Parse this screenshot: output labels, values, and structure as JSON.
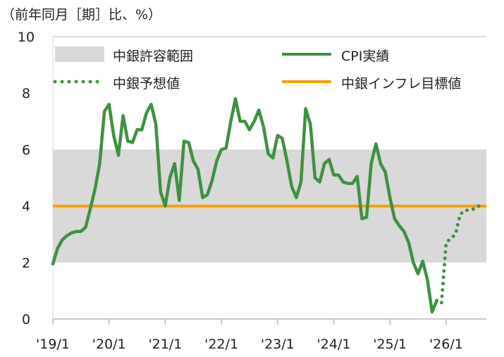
{
  "chart_data": {
    "type": "line",
    "title": "",
    "ylabel": "（前年同月［期］比、%）",
    "xlabel": "",
    "ylim": [
      0,
      10
    ],
    "yticks": [
      "0",
      "2",
      "4",
      "6",
      "8",
      "10"
    ],
    "xticks": [
      "'19/1",
      "'20/1",
      "'21/1",
      "'22/1",
      "'23/1",
      "'24/1",
      "'25/1",
      "'26/1"
    ],
    "start": "2019/1",
    "band": {
      "name": "中銀許容範囲",
      "low": 2,
      "high": 6,
      "color": "#d9d9d9"
    },
    "target": {
      "name": "中銀インフレ目標値",
      "value": 4,
      "color": "#f5a000"
    },
    "series": [
      {
        "name": "CPI実績",
        "style": "solid",
        "color": "#3f9142",
        "start_index": 0,
        "values": [
          1.95,
          2.5,
          2.8,
          2.95,
          3.05,
          3.1,
          3.1,
          3.25,
          3.9,
          4.6,
          5.5,
          7.35,
          7.6,
          6.5,
          5.8,
          7.2,
          6.3,
          6.25,
          6.7,
          6.7,
          7.3,
          7.6,
          6.9,
          4.5,
          4.0,
          5.0,
          5.5,
          4.2,
          6.3,
          6.25,
          5.6,
          5.3,
          4.3,
          4.4,
          4.9,
          5.6,
          6.0,
          6.05,
          7.0,
          7.8,
          7.0,
          7.0,
          6.7,
          7.0,
          7.4,
          6.8,
          5.85,
          5.7,
          6.5,
          6.4,
          5.6,
          4.7,
          4.3,
          4.85,
          7.45,
          6.9,
          5.0,
          4.85,
          5.5,
          5.65,
          5.1,
          5.1,
          4.85,
          4.8,
          4.8,
          5.05,
          3.55,
          3.6,
          5.5,
          6.2,
          5.5,
          5.2,
          4.3,
          3.55,
          3.3,
          3.1,
          2.7,
          2.0,
          1.6,
          2.05,
          1.4,
          0.25,
          0.65
        ]
      },
      {
        "name": "中銀予想値",
        "style": "dotted",
        "color": "#3f9142",
        "start_index": 82,
        "values": [
          0.65,
          0.55,
          2.7,
          2.85,
          3.0,
          3.7,
          3.85,
          3.85,
          3.9,
          4.0
        ]
      }
    ],
    "legend": "top"
  }
}
